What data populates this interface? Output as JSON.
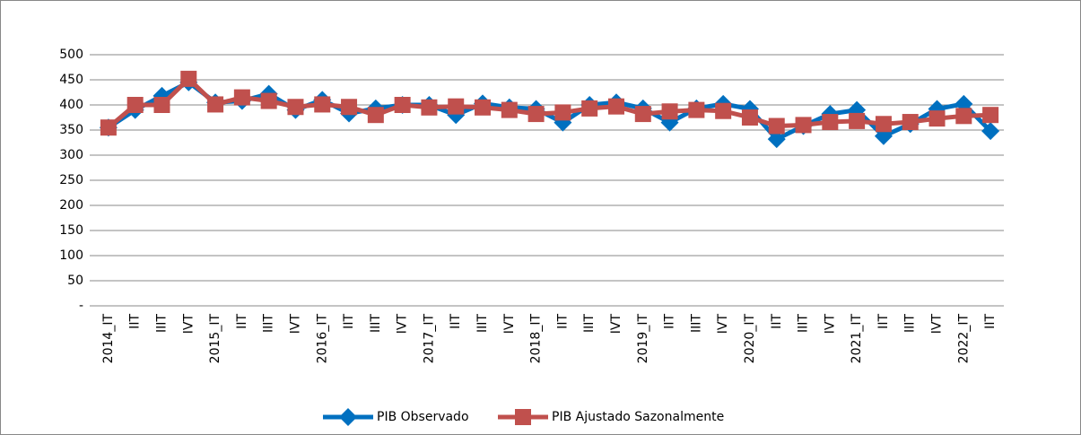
{
  "chart_data": {
    "type": "line",
    "categories": [
      "2014_IT",
      "IIT",
      "IIIT",
      "IVT",
      "2015_IT",
      "IIT",
      "IIIT",
      "IVT",
      "2016_IT",
      "IIT",
      "IIIT",
      "IVT",
      "2017_IT",
      "IIT",
      "IIIT",
      "IVT",
      "2018_IT",
      "IIT",
      "IIIT",
      "IVT",
      "2019_IT",
      "IIT",
      "IIIT",
      "IVT",
      "2020_IT",
      "IIT",
      "IIIT",
      "IVT",
      "2021_IT",
      "IIT",
      "IIIT",
      "IVT",
      "2022_IT",
      "IIT"
    ],
    "series": [
      {
        "name": "PIB Observado",
        "color": "#0070c0",
        "marker": "diamond",
        "values": [
          355,
          390,
          418,
          445,
          405,
          408,
          422,
          390,
          410,
          383,
          393,
          400,
          400,
          380,
          403,
          395,
          392,
          365,
          400,
          405,
          393,
          365,
          393,
          402,
          392,
          332,
          358,
          382,
          390,
          338,
          362,
          392,
          402,
          348
        ]
      },
      {
        "name": "PIB Ajustado Sazonalmente",
        "color": "#c0504d",
        "marker": "square",
        "values": [
          355,
          400,
          400,
          452,
          401,
          415,
          408,
          396,
          401,
          396,
          380,
          400,
          395,
          397,
          395,
          390,
          382,
          385,
          393,
          397,
          382,
          387,
          390,
          388,
          375,
          358,
          360,
          366,
          368,
          362,
          366,
          373,
          378,
          380
        ]
      }
    ],
    "ylim": [
      0,
      500
    ],
    "yticks": [
      {
        "value": 0,
        "label": "-"
      },
      50,
      100,
      150,
      200,
      250,
      300,
      350,
      400,
      450,
      500
    ],
    "grid": true,
    "legend": "bottom"
  }
}
